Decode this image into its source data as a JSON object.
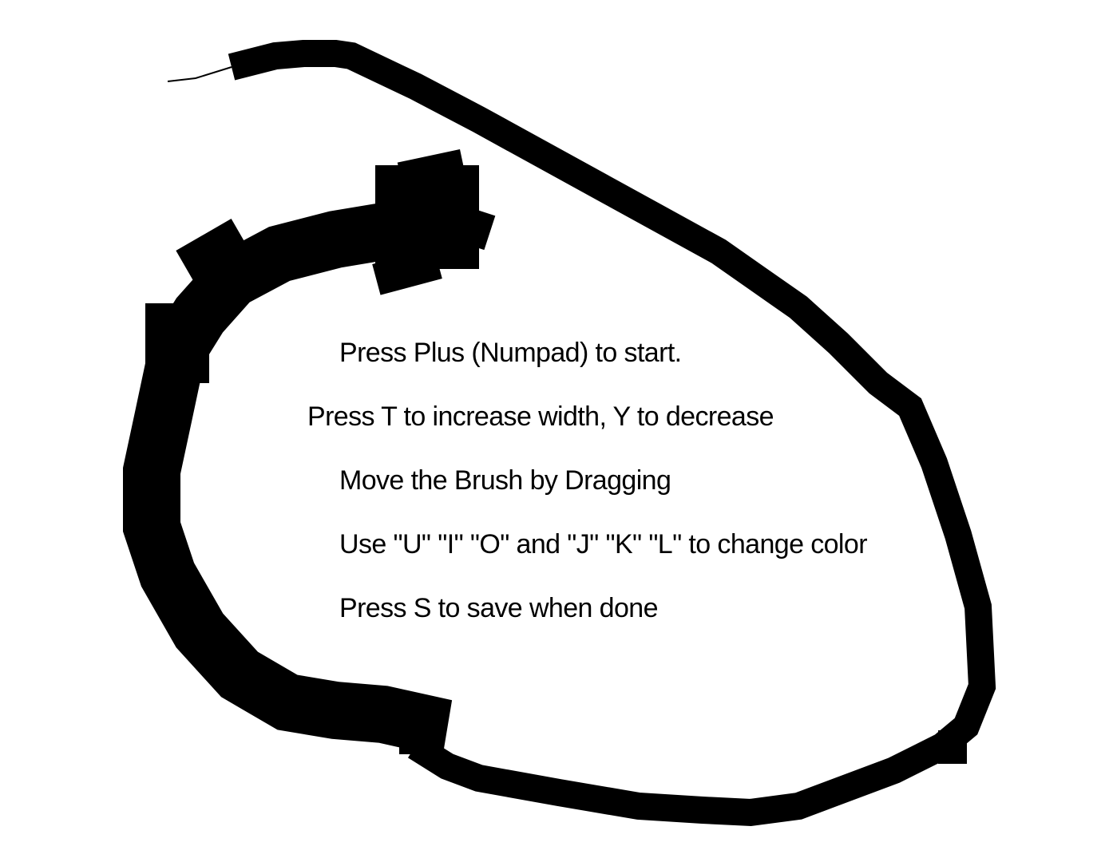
{
  "canvas": {
    "background_color": "#ffffff",
    "brush_color": "#000000"
  },
  "instructions": {
    "start": "Press Plus (Numpad) to start.",
    "width": "Press T to increase width, Y to decrease",
    "move": "Move the Brush by Dragging",
    "color": "Use \"U\" \"I\" \"O\" and \"J\" \"K\" \"L\" to change color",
    "save": "Press  S to save when done"
  }
}
